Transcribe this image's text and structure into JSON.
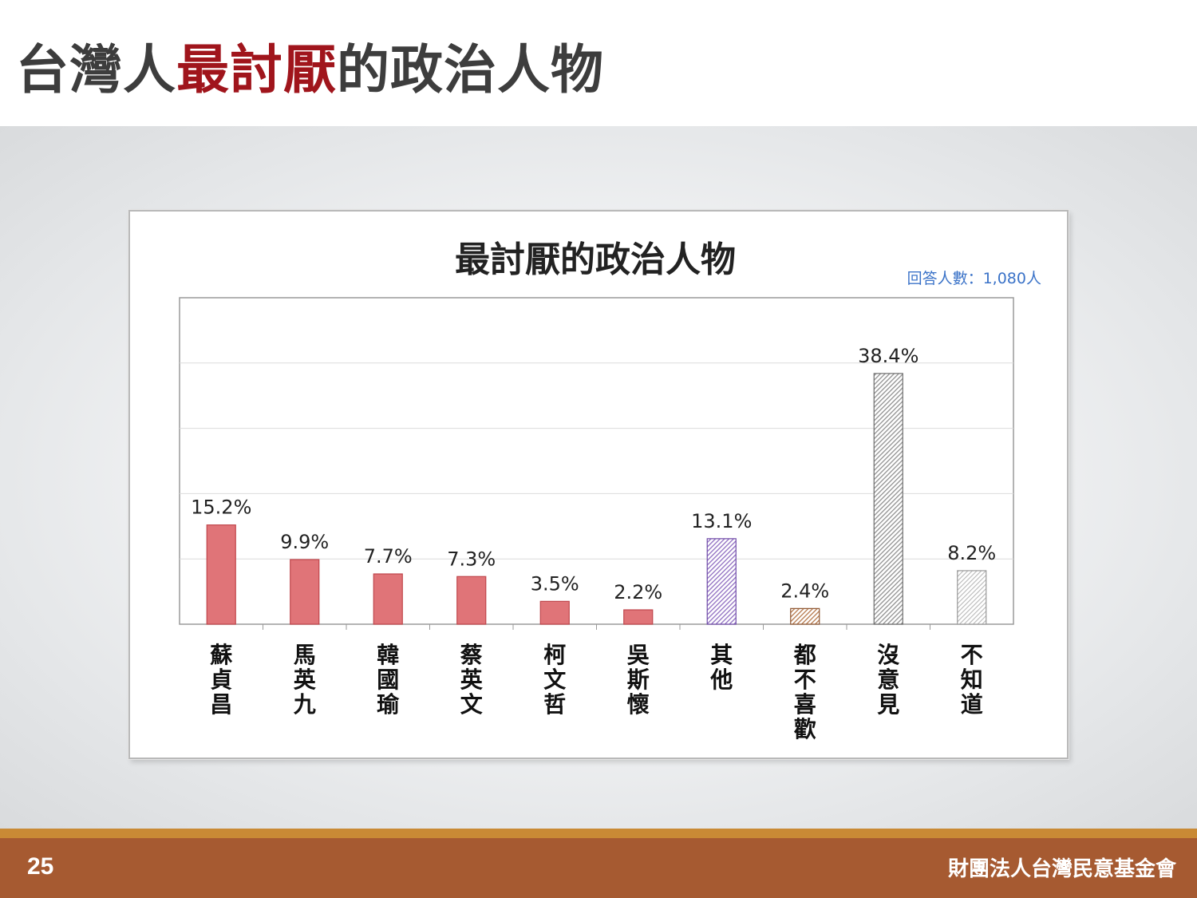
{
  "slide": {
    "title_part1": "台灣人",
    "title_emph": "最討厭",
    "title_part2": "的政治人物",
    "page_number": "25",
    "organization": "財團法人台灣民意基金會"
  },
  "colors": {
    "accent_red": "#a0151c",
    "bar_red": "#e07478",
    "bar_purple": "#8e6cc0",
    "bar_brown": "#b5774a",
    "bar_gray": "#8f8f8f",
    "bar_lightgray": "#b8b8b8",
    "footer": "#a65a31",
    "note_blue": "#3b73c8"
  },
  "chart_data": {
    "type": "bar",
    "title": "最討厭的政治人物",
    "note": "回答人數：1,080人",
    "categories": [
      "蘇貞昌",
      "馬英九",
      "韓國瑜",
      "蔡英文",
      "柯文哲",
      "吳斯懷",
      "其他",
      "都不喜歡",
      "沒意見",
      "不知道"
    ],
    "values": [
      15.2,
      9.9,
      7.7,
      7.3,
      3.5,
      2.2,
      13.1,
      2.4,
      38.4,
      8.2
    ],
    "labels": [
      "15.2%",
      "9.9%",
      "7.7%",
      "7.3%",
      "3.5%",
      "2.2%",
      "13.1%",
      "2.4%",
      "38.4%",
      "8.2%"
    ],
    "bar_styles": [
      "red",
      "red",
      "red",
      "red",
      "red",
      "red",
      "purple-hatch",
      "brown-hatch",
      "gray-hatch",
      "lightgray-hatch"
    ],
    "ylim": [
      0,
      50
    ],
    "grid": true,
    "xlabel": "",
    "ylabel": ""
  }
}
